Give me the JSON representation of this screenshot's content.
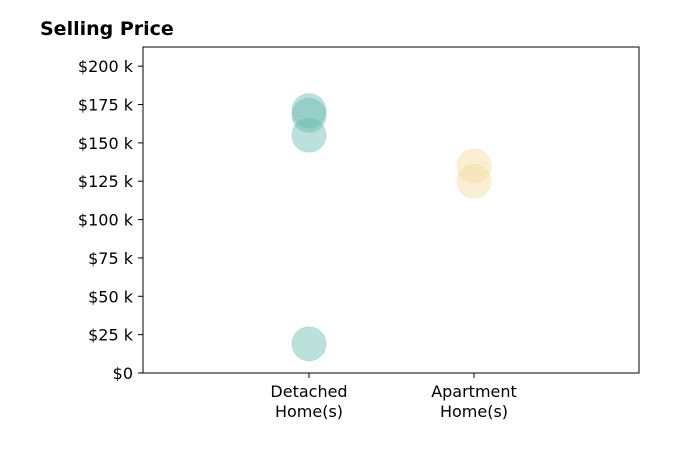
{
  "chart_data": {
    "type": "scatter",
    "title": "Selling Price",
    "xlabel": "",
    "ylabel": "",
    "categories": [
      "Detached\nHome(s)",
      "Apartment\nHome(s)"
    ],
    "ylim": [
      0,
      212500
    ],
    "yticks": [
      0,
      25000,
      50000,
      75000,
      100000,
      125000,
      150000,
      175000,
      200000
    ],
    "ytick_labels": [
      "$0",
      "$25 k",
      "$50 k",
      "$75 k",
      "$100 k",
      "$125 k",
      "$150 k",
      "$175 k",
      "$200 k"
    ],
    "grid": false,
    "legend": "none",
    "series": [
      {
        "category": "Detached\nHome(s)",
        "color": "#5fb8ab",
        "values": [
          19000,
          155000,
          168000,
          171000
        ]
      },
      {
        "category": "Apartment\nHome(s)",
        "color": "#f2d89a",
        "values": [
          125000,
          135000
        ]
      }
    ]
  }
}
